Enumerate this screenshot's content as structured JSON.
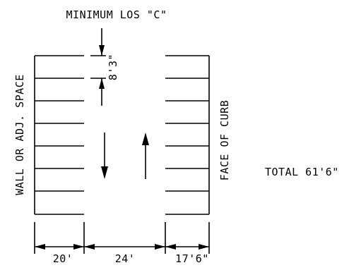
{
  "diagram": {
    "title": "MINIMUM LOS \"C\"",
    "left_label": "WALL OR ADJ. SPACE",
    "right_label": "FACE OF CURB",
    "total_label": "TOTAL 61'6\"",
    "stall_width": "8'3\"",
    "dimensions": [
      "20'",
      "24'",
      "17'6\""
    ]
  }
}
